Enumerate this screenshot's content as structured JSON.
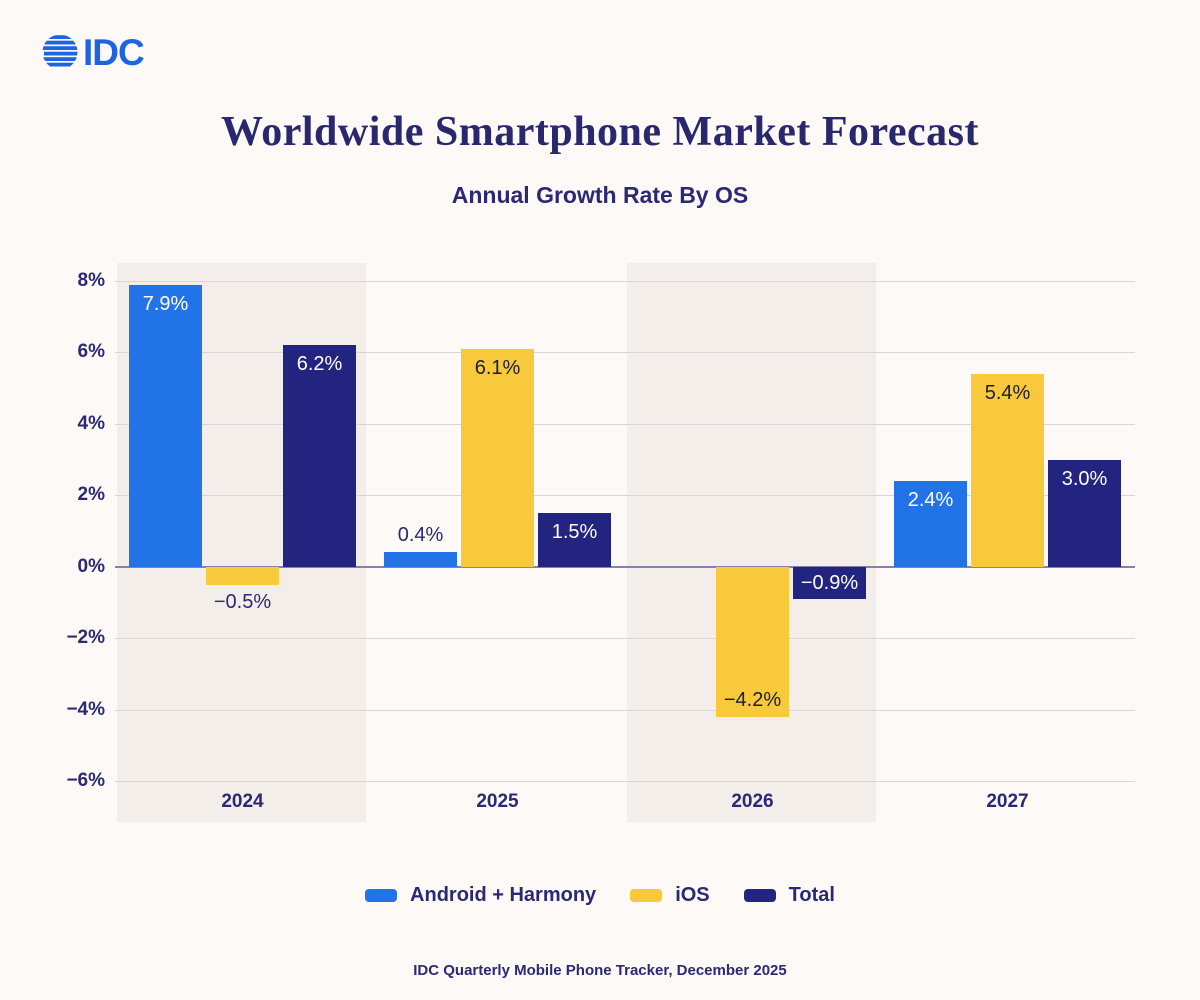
{
  "logo": {
    "text": "IDC",
    "color": "#1e64e0"
  },
  "header": {
    "title": "Worldwide Smartphone Market Forecast",
    "subtitle": "Annual Growth Rate By OS"
  },
  "footer": {
    "source": "IDC Quarterly Mobile Phone Tracker, December 2025"
  },
  "colors": {
    "background": "#fcf9f6",
    "column_band": "#f3eeea",
    "gridline": "#d9d4da",
    "zero_line": "#8581ab",
    "text_navy": "#2b2876",
    "android_blue": "#2273e8",
    "ios_yellow": "#f9c93c",
    "total_navy": "#232380"
  },
  "chart_data": {
    "type": "bar",
    "title": "Worldwide Smartphone Market Forecast",
    "subtitle": "Annual Growth Rate By OS",
    "categories": [
      "2024",
      "2025",
      "2026",
      "2027"
    ],
    "series": [
      {
        "name": "Android + Harmony",
        "color": "#2273e8",
        "inside_label_color": "#ffffff",
        "points": [
          {
            "value": 7.9,
            "label": "7.9%",
            "label_pos": "inside-top"
          },
          {
            "value": 0.4,
            "label": "0.4%",
            "label_pos": "outside-top"
          },
          {
            "value": null,
            "label": "",
            "label_pos": "none"
          },
          {
            "value": 2.4,
            "label": "2.4%",
            "label_pos": "inside-top"
          }
        ]
      },
      {
        "name": "iOS",
        "color": "#f9c93c",
        "inside_label_color": "#1c1c38",
        "points": [
          {
            "value": -0.5,
            "label": "−0.5%",
            "label_pos": "outside-bottom"
          },
          {
            "value": 6.1,
            "label": "6.1%",
            "label_pos": "inside-top"
          },
          {
            "value": -4.2,
            "label": "−4.2%",
            "label_pos": "inside-bottom"
          },
          {
            "value": 5.4,
            "label": "5.4%",
            "label_pos": "inside-top"
          }
        ]
      },
      {
        "name": "Total",
        "color": "#232380",
        "inside_label_color": "#ffffff",
        "points": [
          {
            "value": 6.2,
            "label": "6.2%",
            "label_pos": "inside-top"
          },
          {
            "value": 1.5,
            "label": "1.5%",
            "label_pos": "inside-top"
          },
          {
            "value": -0.9,
            "label": "−0.9%",
            "label_pos": "inside-center"
          },
          {
            "value": 3.0,
            "label": "3.0%",
            "label_pos": "inside-top"
          }
        ]
      }
    ],
    "y_ticks": [
      8,
      6,
      4,
      2,
      0,
      -2,
      -4,
      -6
    ],
    "y_tick_labels": [
      "8%",
      "6%",
      "4%",
      "2%",
      "0%",
      "−2%",
      "−4%",
      "−6%"
    ],
    "ylim": [
      -6,
      8
    ],
    "grid": "horizontal",
    "legend_position": "bottom",
    "shaded_columns": [
      0,
      2
    ],
    "outside_label_color": "#2b2876"
  }
}
